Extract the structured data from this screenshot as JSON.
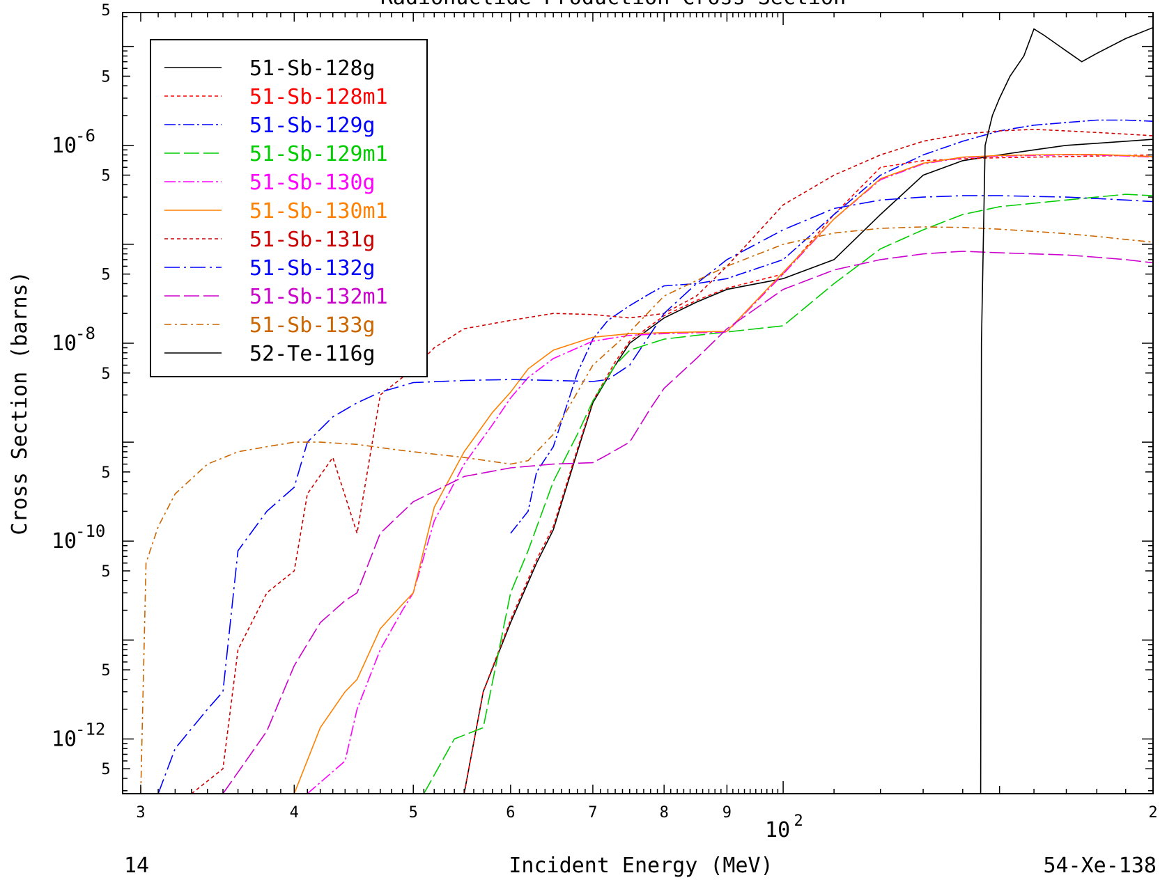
{
  "chart_data": {
    "type": "line",
    "title": "Radionuclide Production Cross Section",
    "xlabel": "Incident Energy (MeV)",
    "ylabel": "Cross Section (barns)",
    "x_scale": "log",
    "y_scale": "log",
    "xlim": [
      29,
      200
    ],
    "ylim": [
      2.8e-13,
      2.2e-05
    ],
    "x_ticks": [
      {
        "value": 30,
        "label": "3"
      },
      {
        "value": 40,
        "label": "4"
      },
      {
        "value": 50,
        "label": "5"
      },
      {
        "value": 60,
        "label": "6"
      },
      {
        "value": 70,
        "label": "7"
      },
      {
        "value": 80,
        "label": "8"
      },
      {
        "value": 90,
        "label": "9"
      },
      {
        "value": 200,
        "label": "2"
      }
    ],
    "x_decade_label": {
      "base": "10",
      "exp": "2",
      "value": 100
    },
    "y_decade_labels": [
      {
        "value": 1e-06,
        "base": "10",
        "exp": "-6"
      },
      {
        "value": 1e-08,
        "base": "10",
        "exp": "-8"
      },
      {
        "value": 1e-10,
        "base": "10",
        "exp": "-10"
      },
      {
        "value": 1e-12,
        "base": "10",
        "exp": "-12"
      }
    ],
    "y_five_labels": [
      5e-06,
      5e-07,
      5e-08,
      5e-09,
      5e-10,
      5e-11,
      5e-12,
      5e-13
    ],
    "y_five_text": "5",
    "top_left_label": "5",
    "bottom_left": "14",
    "bottom_right": "54-Xe-138",
    "legend_position": "top-left",
    "series": [
      {
        "name": "51-Sb-128g",
        "color": "#000000",
        "dash": "solid",
        "x": [
          55,
          57,
          60,
          63,
          65,
          68,
          70,
          73,
          75,
          80,
          85,
          90,
          100,
          110,
          120,
          130,
          140,
          150,
          160,
          170,
          180,
          190,
          200
        ],
        "y": [
          2.8e-13,
          3e-12,
          1.5e-11,
          6e-11,
          1.3e-10,
          8e-10,
          2.5e-09,
          6e-09,
          1e-08,
          1.8e-08,
          2.6e-08,
          3.5e-08,
          4.5e-08,
          7e-08,
          2e-07,
          5e-07,
          7e-07,
          8e-07,
          9e-07,
          1e-06,
          1.05e-06,
          1.1e-06,
          1.15e-06
        ]
      },
      {
        "name": "51-Sb-128m1",
        "color": "#ff0000",
        "dash": "5,4",
        "x": [
          55,
          57,
          60,
          63,
          65,
          68,
          70,
          73,
          75,
          80,
          85,
          90,
          100,
          110,
          120,
          130,
          140,
          150,
          160,
          170,
          180,
          190,
          200
        ],
        "y": [
          2.8e-13,
          3e-12,
          1.6e-11,
          6.5e-11,
          1.4e-10,
          8.5e-10,
          2.6e-09,
          6.5e-09,
          1.05e-08,
          1.9e-08,
          2.7e-08,
          3.6e-08,
          5e-08,
          2e-07,
          6e-07,
          7e-07,
          7.3e-07,
          7.5e-07,
          7.6e-07,
          7.7e-07,
          7.8e-07,
          7.9e-07,
          8e-07
        ]
      },
      {
        "name": "51-Sb-129g",
        "color": "#0000ff",
        "dash": "16,4,3,4",
        "x": [
          60,
          62,
          63,
          65,
          68,
          70,
          72,
          75,
          78,
          80,
          85,
          90,
          100,
          110,
          120,
          130,
          140,
          150,
          160,
          170,
          180,
          190,
          200
        ],
        "y": [
          1.2e-10,
          2e-10,
          5e-10,
          9e-10,
          5e-09,
          1.1e-08,
          1.7e-08,
          2.4e-08,
          3.2e-08,
          3.8e-08,
          4e-08,
          4.5e-08,
          7e-08,
          2e-07,
          5e-07,
          8e-07,
          1.1e-06,
          1.4e-06,
          1.6e-06,
          1.7e-06,
          1.8e-06,
          1.8e-06,
          1.75e-06
        ]
      },
      {
        "name": "51-Sb-129m1",
        "color": "#00cc00",
        "dash": "22,6",
        "x": [
          51,
          54,
          57,
          60,
          62,
          65,
          68,
          70,
          73,
          75,
          80,
          85,
          90,
          100,
          110,
          120,
          130,
          140,
          150,
          160,
          170,
          180,
          190,
          200
        ],
        "y": [
          2.8e-13,
          1e-12,
          1.3e-12,
          3e-11,
          8e-11,
          4e-10,
          1.2e-09,
          2.6e-09,
          6e-09,
          8.5e-09,
          1.1e-08,
          1.2e-08,
          1.3e-08,
          1.5e-08,
          4e-08,
          9e-08,
          1.4e-07,
          2e-07,
          2.4e-07,
          2.6e-07,
          2.8e-07,
          3e-07,
          3.2e-07,
          3.1e-07
        ]
      },
      {
        "name": "51-Sb-130g",
        "color": "#ff00ff",
        "dash": "16,4,3,4",
        "x": [
          41,
          44,
          45,
          47,
          49,
          50,
          52,
          55,
          58,
          60,
          62,
          65,
          70,
          75,
          80,
          90,
          100,
          110,
          120,
          130,
          140,
          150,
          160,
          170,
          180,
          190,
          200
        ],
        "y": [
          2.8e-13,
          6e-13,
          2e-12,
          8e-12,
          2e-11,
          3e-11,
          1.6e-10,
          6e-10,
          1.5e-09,
          2.8e-09,
          4.5e-09,
          7e-09,
          1.05e-08,
          1.2e-08,
          1.25e-08,
          1.3e-08,
          5e-08,
          1.8e-07,
          4.5e-07,
          6.5e-07,
          7.5e-07,
          7.8e-07,
          7.9e-07,
          8e-07,
          8e-07,
          7.8e-07,
          7.6e-07
        ]
      },
      {
        "name": "51-Sb-130m1",
        "color": "#ff8000",
        "dash": "solid",
        "x": [
          40,
          42,
          44,
          45,
          47,
          49,
          50,
          52,
          55,
          58,
          60,
          62,
          65,
          70,
          75,
          80,
          90,
          100,
          110,
          120,
          130,
          140,
          150,
          160,
          170,
          180,
          190,
          200
        ],
        "y": [
          2.8e-13,
          1.3e-12,
          3e-12,
          4e-12,
          1.3e-11,
          2.3e-11,
          3e-11,
          2.2e-10,
          8e-10,
          2e-09,
          3.2e-09,
          5.5e-09,
          8.5e-09,
          1.15e-08,
          1.25e-08,
          1.28e-08,
          1.32e-08,
          5.2e-08,
          1.8e-07,
          4.6e-07,
          6.6e-07,
          7.6e-07,
          7.9e-07,
          8e-07,
          8.1e-07,
          8.1e-07,
          7.9e-07,
          7.7e-07
        ]
      },
      {
        "name": "51-Sb-131g",
        "color": "#cc0000",
        "dash": "5,4",
        "x": [
          33,
          35,
          36,
          38,
          40,
          41,
          43,
          45,
          47,
          50,
          52,
          55,
          60,
          65,
          70,
          75,
          80,
          85,
          90,
          100,
          110,
          120,
          130,
          140,
          150,
          160,
          170,
          180,
          190,
          200
        ],
        "y": [
          2.8e-13,
          5e-13,
          8e-12,
          3e-11,
          5e-11,
          3e-10,
          7e-10,
          1.2e-10,
          3e-09,
          5.5e-09,
          9e-09,
          1.4e-08,
          1.7e-08,
          2e-08,
          1.95e-08,
          1.8e-08,
          2e-08,
          3e-08,
          6e-08,
          2.5e-07,
          5e-07,
          8e-07,
          1.1e-06,
          1.3e-06,
          1.4e-06,
          1.45e-06,
          1.4e-06,
          1.35e-06,
          1.3e-06,
          1.25e-06
        ]
      },
      {
        "name": "51-Sb-132g",
        "color": "#0000ff",
        "dash": "22,6,3,6",
        "x": [
          31,
          32,
          34,
          35,
          36,
          38,
          40,
          41,
          43,
          45,
          47,
          50,
          55,
          60,
          65,
          70,
          72,
          75,
          80,
          85,
          90,
          100,
          110,
          120,
          130,
          140,
          150,
          160,
          170,
          180,
          190,
          200
        ],
        "y": [
          2.8e-13,
          8e-13,
          2e-12,
          3e-12,
          8e-11,
          2e-10,
          3.5e-10,
          1e-09,
          1.8e-09,
          2.5e-09,
          3.2e-09,
          4e-09,
          4.2e-09,
          4.3e-09,
          4.2e-09,
          4.1e-09,
          4.3e-09,
          6e-09,
          2e-08,
          4e-08,
          7e-08,
          1.4e-07,
          2.3e-07,
          2.8e-07,
          3e-07,
          3.1e-07,
          3.1e-07,
          3.05e-07,
          3e-07,
          2.9e-07,
          2.8e-07,
          2.7e-07
        ]
      },
      {
        "name": "51-Sb-132m1",
        "color": "#cc00cc",
        "dash": "22,6",
        "x": [
          35,
          38,
          40,
          42,
          44,
          45,
          47,
          50,
          55,
          60,
          65,
          70,
          72,
          75,
          78,
          80,
          85,
          90,
          100,
          110,
          120,
          130,
          140,
          150,
          160,
          170,
          180,
          190,
          200
        ],
        "y": [
          2.8e-13,
          1.2e-12,
          5.5e-12,
          1.5e-11,
          2.5e-11,
          3e-11,
          1.2e-10,
          2.5e-10,
          4.5e-10,
          5.5e-10,
          6e-10,
          6.2e-10,
          7.5e-10,
          1e-09,
          2.2e-09,
          3.5e-09,
          7e-09,
          1.4e-08,
          3.5e-08,
          5.5e-08,
          7e-08,
          8e-08,
          8.5e-08,
          8.2e-08,
          8e-08,
          7.8e-08,
          7.4e-08,
          7e-08,
          6.5e-08
        ]
      },
      {
        "name": "51-Sb-133g",
        "color": "#cc6600",
        "dash": "10,5,3,5",
        "x": [
          30,
          30.3,
          31,
          32,
          34,
          36,
          38,
          40,
          42,
          45,
          48,
          50,
          55,
          60,
          62,
          65,
          70,
          75,
          80,
          90,
          100,
          110,
          120,
          130,
          140,
          150,
          160,
          170,
          180,
          190,
          200
        ],
        "y": [
          2.8e-13,
          6e-11,
          1.4e-10,
          3e-10,
          6e-10,
          8e-10,
          9e-10,
          1e-09,
          1e-09,
          9.5e-10,
          8.5e-10,
          8e-10,
          7e-10,
          6e-10,
          6.5e-10,
          1.2e-09,
          6e-09,
          1.3e-08,
          3e-08,
          6e-08,
          1e-07,
          1.3e-07,
          1.45e-07,
          1.5e-07,
          1.48e-07,
          1.42e-07,
          1.35e-07,
          1.28e-07,
          1.2e-07,
          1.12e-07,
          1.05e-07
        ]
      },
      {
        "name": "52-Te-116g",
        "color": "#000000",
        "dash": "solid",
        "x": [
          144.8,
          145,
          146,
          148,
          150,
          153,
          157,
          160,
          163,
          170,
          175,
          180,
          190,
          200
        ],
        "y": [
          2.8e-13,
          1e-08,
          1e-06,
          2e-06,
          3e-06,
          5e-06,
          8e-06,
          1.5e-05,
          1.3e-05,
          9e-06,
          7e-06,
          8.5e-06,
          1.2e-05,
          1.55e-05
        ]
      }
    ]
  }
}
